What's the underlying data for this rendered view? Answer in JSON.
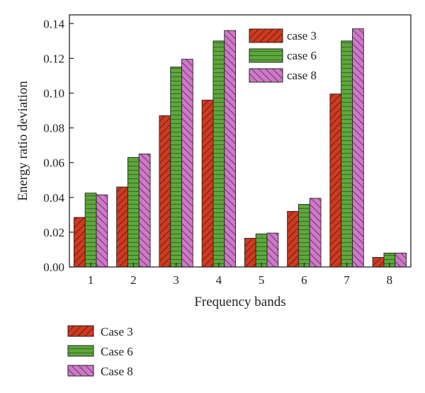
{
  "chart_data": {
    "type": "bar",
    "xlabel": "Frequency bands",
    "ylabel": "Energy ratio deviation",
    "ylim": [
      0,
      0.145
    ],
    "yticks": [
      "0.00",
      "0.02",
      "0.04",
      "0.06",
      "0.08",
      "0.10",
      "0.12",
      "0.14"
    ],
    "categories": [
      "1",
      "2",
      "3",
      "4",
      "5",
      "6",
      "7",
      "8"
    ],
    "grid": false,
    "legend_position": "top-right",
    "series": [
      {
        "name": "case 3",
        "color": "#d2391f",
        "hatch": "forward-diagonal",
        "values": [
          0.0285,
          0.046,
          0.087,
          0.096,
          0.0165,
          0.032,
          0.0995,
          0.0055
        ]
      },
      {
        "name": "case 6",
        "color": "#5ca83a",
        "hatch": "horizontal",
        "values": [
          0.0425,
          0.063,
          0.115,
          0.13,
          0.019,
          0.036,
          0.13,
          0.008
        ]
      },
      {
        "name": "case 8",
        "color": "#cf78c9",
        "hatch": "back-diagonal",
        "values": [
          0.0415,
          0.065,
          0.1195,
          0.136,
          0.0195,
          0.0395,
          0.137,
          0.008
        ]
      }
    ],
    "lower_legend": [
      "Case 3",
      "Case 6",
      "Case 8"
    ]
  }
}
